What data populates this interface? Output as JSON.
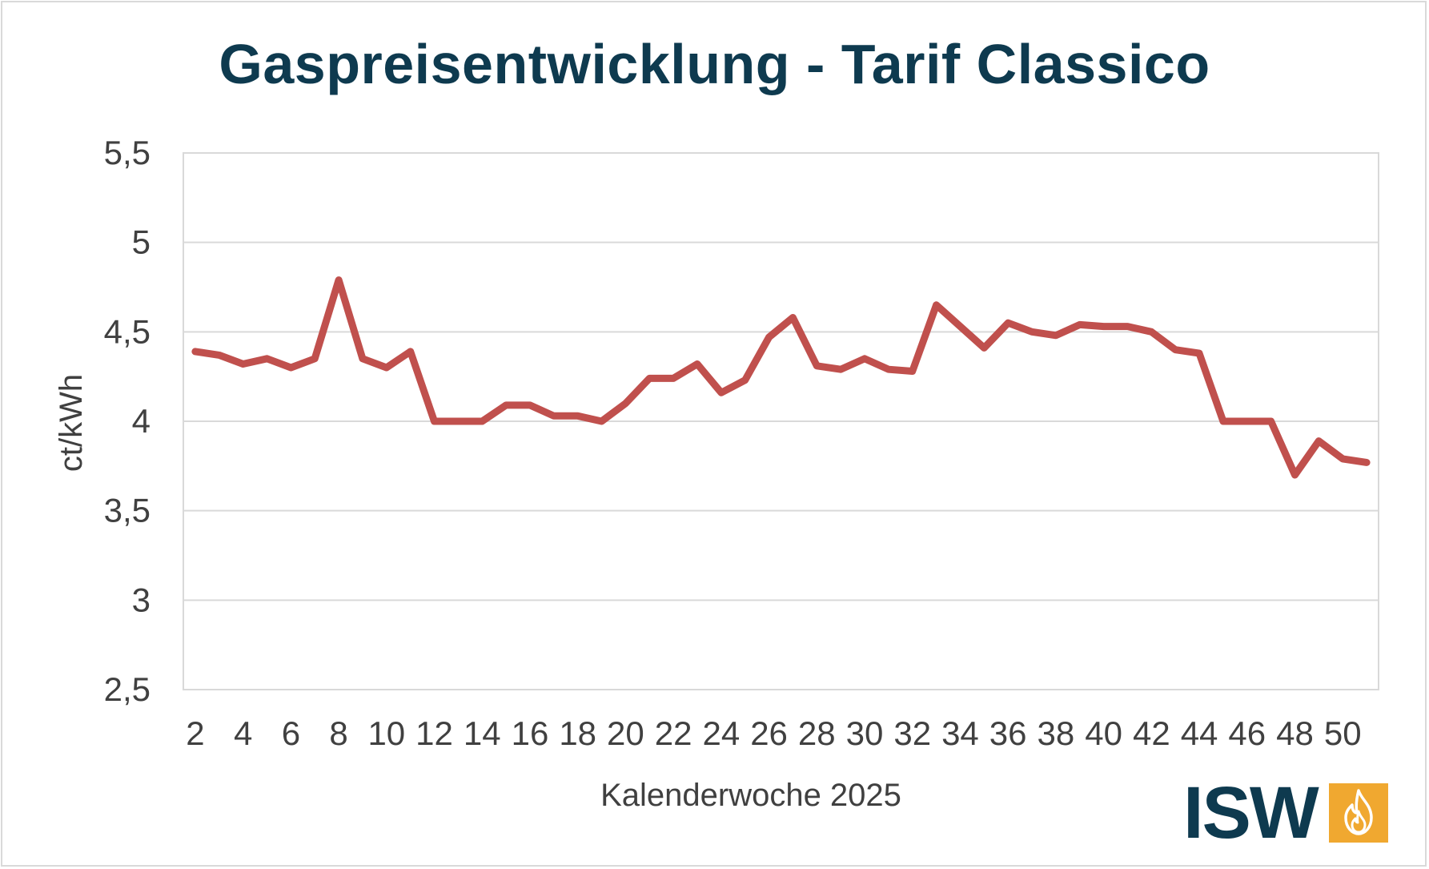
{
  "chart_data": {
    "type": "line",
    "title": "Gaspreisentwicklung - Tarif Classico",
    "xlabel": "Kalenderwoche 2025",
    "ylabel": "ct/kWh",
    "ylim": [
      2.5,
      5.5
    ],
    "yticks": [
      "5,5",
      "5",
      "4,5",
      "4",
      "3,5",
      "3",
      "2,5"
    ],
    "ytick_values": [
      5.5,
      5,
      4.5,
      4,
      3.5,
      3,
      2.5
    ],
    "xticks": [
      "2",
      "4",
      "6",
      "8",
      "10",
      "12",
      "14",
      "16",
      "18",
      "20",
      "22",
      "24",
      "26",
      "28",
      "30",
      "32",
      "34",
      "36",
      "38",
      "40",
      "42",
      "44",
      "46",
      "48",
      "50"
    ],
    "xtick_values": [
      2,
      4,
      6,
      8,
      10,
      12,
      14,
      16,
      18,
      20,
      22,
      24,
      26,
      28,
      30,
      32,
      34,
      36,
      38,
      40,
      42,
      44,
      46,
      48,
      50
    ],
    "xlim": [
      1.5,
      51.5
    ],
    "grid": true,
    "series": [
      {
        "color": "#c0504d",
        "x": [
          2,
          3,
          4,
          5,
          6,
          7,
          8,
          9,
          10,
          11,
          12,
          13,
          14,
          15,
          16,
          17,
          18,
          19,
          20,
          21,
          22,
          23,
          24,
          25,
          26,
          27,
          28,
          29,
          30,
          31,
          32,
          33,
          34,
          35,
          36,
          37,
          38,
          39,
          40,
          41,
          42,
          43,
          44,
          45,
          46,
          47,
          48,
          49,
          50,
          51
        ],
        "values": [
          4.39,
          4.37,
          4.32,
          4.35,
          4.3,
          4.35,
          4.79,
          4.35,
          4.3,
          4.39,
          4.0,
          4.0,
          4.0,
          4.09,
          4.09,
          4.03,
          4.03,
          4.0,
          4.1,
          4.24,
          4.24,
          4.32,
          4.16,
          4.23,
          4.47,
          4.58,
          4.31,
          4.29,
          4.35,
          4.29,
          4.28,
          4.65,
          4.53,
          4.41,
          4.55,
          4.5,
          4.48,
          4.54,
          4.53,
          4.53,
          4.5,
          4.4,
          4.38,
          4.0,
          4.0,
          4.0,
          3.7,
          3.89,
          3.79,
          3.77
        ]
      }
    ]
  },
  "logo": {
    "text": "ISW",
    "box_color": "#f0a830",
    "icon": "flame-icon"
  }
}
